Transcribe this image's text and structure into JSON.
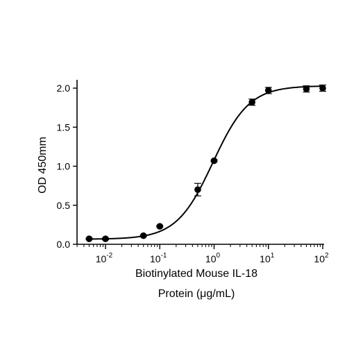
{
  "chart_data": {
    "type": "scatter",
    "title": "",
    "ylabel": "OD 450mm",
    "xlabel_lines": [
      "Biotinylated Mouse IL-18",
      "Protein (μg/mL)"
    ],
    "x_scale": "log",
    "xlim": [
      0.003,
      100
    ],
    "ylim": [
      0,
      2.1
    ],
    "y_ticks": [
      0,
      0.5,
      1.0,
      1.5,
      2.0
    ],
    "y_tick_labels": [
      "0.0",
      "0.5",
      "1.0",
      "1.5",
      "2.0"
    ],
    "x_ticks": [
      0.01,
      0.1,
      1,
      10,
      100
    ],
    "x_tick_labels": [
      {
        "base": "10",
        "exp": "-2"
      },
      {
        "base": "10",
        "exp": "-1"
      },
      {
        "base": "10",
        "exp": "0"
      },
      {
        "base": "10",
        "exp": "1"
      },
      {
        "base": "10",
        "exp": "2"
      }
    ],
    "grid": false,
    "legend": "none",
    "series": [
      {
        "x": [
          0.005,
          0.01,
          0.05,
          0.1,
          0.5,
          1,
          5,
          10,
          50,
          100
        ],
        "y": [
          0.07,
          0.07,
          0.11,
          0.23,
          0.7,
          1.07,
          1.82,
          1.97,
          1.99,
          2.0
        ],
        "error": [
          0.01,
          0.01,
          0.01,
          0.01,
          0.08,
          0.01,
          0.04,
          0.04,
          0.04,
          0.04
        ]
      }
    ],
    "fit": {
      "model": "4PL",
      "bottom": 0.065,
      "top": 2.03,
      "ec50": 0.95,
      "hill": 1.3
    }
  }
}
